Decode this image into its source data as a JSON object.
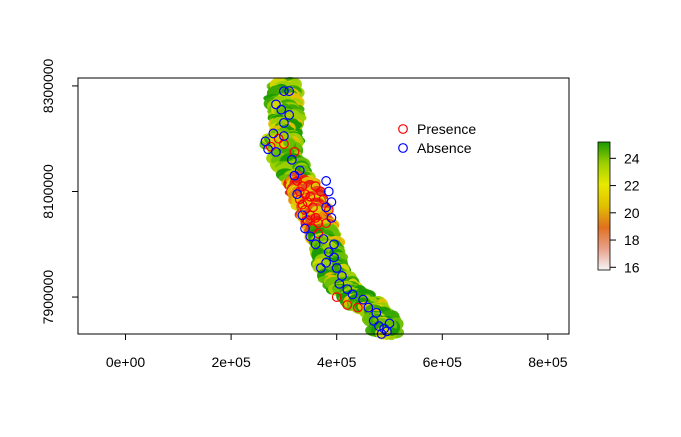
{
  "chart_data": {
    "type": "scatter",
    "title": "",
    "xlabel": "",
    "ylabel": "",
    "xlim": [
      -90000,
      840000
    ],
    "ylim": [
      7830000,
      8315000
    ],
    "x_ticks": [
      {
        "value": 0,
        "label": "0e+00"
      },
      {
        "value": 200000,
        "label": "2e+05"
      },
      {
        "value": 400000,
        "label": "4e+05"
      },
      {
        "value": 600000,
        "label": "6e+05"
      },
      {
        "value": 800000,
        "label": "8e+05"
      }
    ],
    "y_ticks": [
      {
        "value": 7900000,
        "label": "7900000"
      },
      {
        "value": 8100000,
        "label": "8100000"
      },
      {
        "value": 8300000,
        "label": "8300000"
      }
    ],
    "legend": {
      "position": "top-right",
      "entries": [
        {
          "label": "Presence",
          "color": "#ff0000"
        },
        {
          "label": "Absence",
          "color": "#0000ff"
        }
      ]
    },
    "colorbar": {
      "min": 15.8,
      "max": 25.2,
      "ticks": [
        16,
        18,
        20,
        22,
        24
      ],
      "colors": [
        "#f5f5f5",
        "#e8a08a",
        "#e07020",
        "#e0c000",
        "#e8e800",
        "#9ed000",
        "#1a9a00"
      ]
    },
    "raster_track": [
      [
        305000,
        8300000
      ],
      [
        300000,
        8270000
      ],
      [
        305000,
        8240000
      ],
      [
        305000,
        8215000
      ],
      [
        300000,
        8180000
      ],
      [
        310000,
        8150000
      ],
      [
        330000,
        8120000
      ],
      [
        345000,
        8090000
      ],
      [
        360000,
        8060000
      ],
      [
        370000,
        8030000
      ],
      [
        380000,
        8000000
      ],
      [
        385000,
        7970000
      ],
      [
        395000,
        7940000
      ],
      [
        420000,
        7910000
      ],
      [
        455000,
        7890000
      ],
      [
        485000,
        7860000
      ],
      [
        495000,
        7835000
      ]
    ],
    "raster_side_lobe": [
      [
        265000,
        8195000
      ],
      [
        310000,
        8200000
      ]
    ],
    "presence": [
      [
        290000,
        8200000
      ],
      [
        300000,
        8190000
      ],
      [
        275000,
        8185000
      ],
      [
        320000,
        8175000
      ],
      [
        325000,
        8120000
      ],
      [
        335000,
        8110000
      ],
      [
        340000,
        8095000
      ],
      [
        330000,
        8085000
      ],
      [
        345000,
        8080000
      ],
      [
        355000,
        8070000
      ],
      [
        340000,
        8065000
      ],
      [
        350000,
        8055000
      ],
      [
        360000,
        8050000
      ],
      [
        345000,
        8045000
      ],
      [
        365000,
        8040000
      ],
      [
        355000,
        8030000
      ],
      [
        370000,
        8100000
      ],
      [
        360000,
        8110000
      ],
      [
        375000,
        8085000
      ],
      [
        335000,
        8075000
      ],
      [
        380000,
        8040000
      ],
      [
        365000,
        8020000
      ],
      [
        420000,
        7885000
      ],
      [
        400000,
        7900000
      ],
      [
        440000,
        7880000
      ],
      [
        350000,
        8090000
      ],
      [
        330000,
        8100000
      ],
      [
        385000,
        8065000
      ]
    ],
    "absence": [
      [
        300000,
        8290000
      ],
      [
        310000,
        8290000
      ],
      [
        285000,
        8265000
      ],
      [
        295000,
        8255000
      ],
      [
        310000,
        8245000
      ],
      [
        300000,
        8230000
      ],
      [
        280000,
        8210000
      ],
      [
        265000,
        8195000
      ],
      [
        300000,
        8205000
      ],
      [
        315000,
        8160000
      ],
      [
        330000,
        8140000
      ],
      [
        320000,
        8130000
      ],
      [
        325000,
        8095000
      ],
      [
        380000,
        8120000
      ],
      [
        385000,
        8100000
      ],
      [
        390000,
        8080000
      ],
      [
        380000,
        8070000
      ],
      [
        390000,
        8050000
      ],
      [
        340000,
        8030000
      ],
      [
        350000,
        8015000
      ],
      [
        375000,
        8010000
      ],
      [
        395000,
        8000000
      ],
      [
        385000,
        7985000
      ],
      [
        380000,
        7965000
      ],
      [
        370000,
        7955000
      ],
      [
        400000,
        7955000
      ],
      [
        410000,
        7940000
      ],
      [
        405000,
        7925000
      ],
      [
        420000,
        7915000
      ],
      [
        430000,
        7905000
      ],
      [
        450000,
        7895000
      ],
      [
        460000,
        7880000
      ],
      [
        475000,
        7870000
      ],
      [
        470000,
        7855000
      ],
      [
        480000,
        7845000
      ],
      [
        490000,
        7840000
      ],
      [
        500000,
        7850000
      ],
      [
        485000,
        7830000
      ],
      [
        495000,
        7835000
      ],
      [
        270000,
        8180000
      ],
      [
        285000,
        8175000
      ],
      [
        335000,
        8055000
      ],
      [
        360000,
        8000000
      ],
      [
        395000,
        7975000
      ]
    ]
  }
}
